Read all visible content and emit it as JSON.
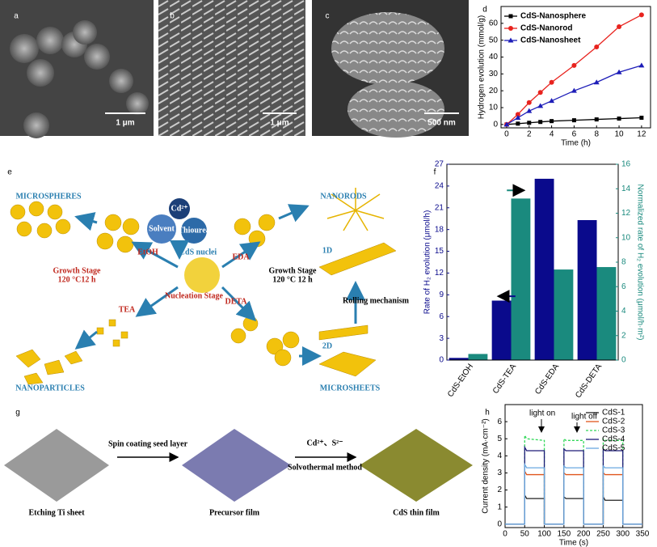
{
  "panel_letters": [
    "a",
    "b",
    "c",
    "d",
    "e",
    "f",
    "g",
    "h"
  ],
  "sem_images": [
    {
      "scale_bar": "1 μm"
    },
    {
      "scale_bar": "1 μm"
    },
    {
      "scale_bar": "500 nm"
    }
  ],
  "diagram_e": {
    "labels": [
      "MICROSPHERES",
      "Cd²⁺",
      "Solvent",
      "Thiourea",
      "CdS nuclei",
      "EtOH",
      "EDA",
      "TEA",
      "DETA",
      "Growth Stage",
      "120 °C12 h",
      "Nucleation Stage",
      "NANOPARTICLES",
      "NANORODS",
      "Growth Stage",
      "120 °C 12 h",
      "1D",
      "Rolling mechanism",
      "2D",
      "MICROSHEETS"
    ]
  },
  "diagram_g": {
    "steps": [
      "Spin coating seed layer",
      "Cd²⁺、S²⁻",
      "Solvothermal method"
    ],
    "films": [
      "Etching Ti sheet",
      "Precursor film",
      "CdS thin film"
    ]
  },
  "chart_data": [
    {
      "type": "line",
      "x_label": "Time (h)",
      "y_label": "Hydrogen evolution (mmol/g)",
      "x": [
        0,
        1,
        2,
        3,
        4,
        6,
        8,
        10,
        12
      ],
      "xlim": [
        -0.5,
        12.8
      ],
      "xticks": [
        0,
        2,
        4,
        6,
        8,
        10,
        12
      ],
      "ylim": [
        -2,
        70
      ],
      "yticks": [
        0,
        10,
        20,
        30,
        40,
        50,
        60
      ],
      "legend": "upper-left",
      "series": [
        {
          "name": "CdS-Nanosphere",
          "color": "#000000",
          "marker": "square",
          "values": [
            0,
            0.5,
            1,
            1.5,
            2,
            2.5,
            3,
            3.5,
            4
          ]
        },
        {
          "name": "CdS-Nanorod",
          "color": "#e8231e",
          "marker": "circle",
          "values": [
            0,
            6,
            13,
            19,
            25,
            35,
            46,
            58,
            65
          ]
        },
        {
          "name": "CdS-Nanosheet",
          "color": "#1d1db8",
          "marker": "triangle",
          "values": [
            0,
            4,
            8,
            11,
            14,
            20,
            25,
            31,
            35
          ]
        }
      ]
    },
    {
      "type": "bar",
      "y_label": "Rate of H₂ evolution (μmol/h)",
      "y2_label": "Normalized rate of H₂ evolution (μmol/h·m²)",
      "categories": [
        "CdS-EtOH",
        "CdS-TEA",
        "CdS-EDA",
        "CdS-DETA"
      ],
      "ylim": [
        0,
        27
      ],
      "yticks": [
        0,
        3,
        6,
        9,
        12,
        15,
        18,
        21,
        24,
        27
      ],
      "y2lim": [
        0,
        16
      ],
      "y2ticks": [
        0,
        2,
        4,
        6,
        8,
        10,
        12,
        14,
        16
      ],
      "series": [
        {
          "color": "#0a0a8c",
          "values": [
            0.3,
            8.2,
            25,
            19.3
          ]
        },
        {
          "color": "#1a8a7e",
          "axis": "y2",
          "values": [
            0.5,
            13.2,
            7.4,
            7.6
          ]
        }
      ]
    },
    {
      "type": "line",
      "x_label": "Time (s)",
      "y_label": "Current density (mA·cm⁻²)",
      "annotations": [
        "light on",
        "light off"
      ],
      "x": [
        0,
        50,
        50,
        55,
        100,
        100,
        150,
        150,
        155,
        200,
        200,
        250,
        250,
        255,
        300,
        300,
        350
      ],
      "xlim": [
        0,
        350
      ],
      "xticks": [
        0,
        50,
        100,
        150,
        200,
        250,
        300,
        350
      ],
      "ylim": [
        -0.2,
        7
      ],
      "yticks": [
        0,
        1,
        2,
        3,
        4,
        5,
        6
      ],
      "legend": "upper-right",
      "series": [
        {
          "name": "CdS-1",
          "color": "#222222",
          "values": [
            0,
            0,
            1.7,
            1.5,
            1.5,
            0,
            0,
            1.6,
            1.5,
            1.5,
            0,
            0,
            1.6,
            1.4,
            1.4,
            0,
            0
          ]
        },
        {
          "name": "CdS-2",
          "color": "#e0561c",
          "values": [
            0,
            0,
            3.1,
            2.9,
            2.9,
            0,
            0,
            3.0,
            2.9,
            2.9,
            0,
            0,
            3.0,
            2.9,
            2.9,
            0,
            0
          ]
        },
        {
          "name": "CdS-3",
          "color": "#30d858",
          "dashed": true,
          "values": [
            0,
            0,
            5.2,
            5.0,
            4.9,
            0,
            0,
            5.0,
            4.9,
            4.9,
            0,
            0,
            5.0,
            4.9,
            4.9,
            0,
            0
          ]
        },
        {
          "name": "CdS-4",
          "color": "#1d1a78",
          "values": [
            0,
            0,
            4.5,
            4.3,
            4.3,
            0,
            0,
            4.4,
            4.3,
            4.3,
            0,
            0,
            4.4,
            4.3,
            4.3,
            0,
            0
          ]
        },
        {
          "name": "CdS-5",
          "color": "#6aa8e0",
          "values": [
            0,
            0,
            3.5,
            3.3,
            3.3,
            0,
            0,
            3.4,
            3.3,
            3.3,
            0,
            0,
            3.4,
            3.3,
            3.3,
            0,
            0
          ]
        }
      ]
    }
  ]
}
